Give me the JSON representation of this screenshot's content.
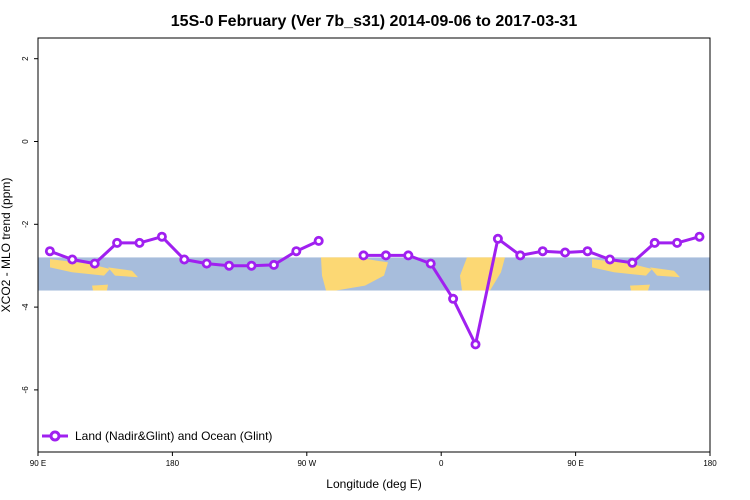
{
  "chart_data": {
    "type": "line",
    "title": "15S-0 February (Ver 7b_s31)   2014-09-06 to 2017-03-31",
    "xlabel": "Longitude (deg E)",
    "ylabel": "XCO2 - MLO trend (ppm)",
    "xlim": [
      90,
      540
    ],
    "ylim": [
      -7.5,
      2.5
    ],
    "x_ticks": [
      {
        "value": 90,
        "label": "90 E"
      },
      {
        "value": 180,
        "label": "180"
      },
      {
        "value": 270,
        "label": "90 W"
      },
      {
        "value": 360,
        "label": "0"
      },
      {
        "value": 450,
        "label": "90 E"
      },
      {
        "value": 540,
        "label": "180"
      }
    ],
    "y_ticks": [
      {
        "value": 2,
        "label": "2"
      },
      {
        "value": 0,
        "label": "0"
      },
      {
        "value": -2,
        "label": "-2"
      },
      {
        "value": -4,
        "label": "-4"
      },
      {
        "value": -6,
        "label": "-6"
      }
    ],
    "background_band": {
      "y_from": -3.6,
      "y_to": -2.8,
      "ocean_color": "#a7bddc",
      "land_color": "#fcd874"
    },
    "legend": {
      "placement": "bottom-left",
      "entries": [
        "Land (Nadir&Glint) and Ocean (Glint)"
      ]
    },
    "grid": false,
    "series": [
      {
        "name": "Land (Nadir&Glint) and Ocean (Glint)",
        "color": "#a020f0",
        "segments": [
          {
            "x": [
              98,
              113,
              128,
              143,
              158,
              173,
              188,
              203,
              218,
              233,
              248,
              263,
              278
            ],
            "y": [
              -2.65,
              -2.85,
              -2.95,
              -2.45,
              -2.45,
              -2.3,
              -2.85,
              -2.95,
              -3.0,
              -3.0,
              -2.98,
              -2.65,
              -2.4
            ]
          },
          {
            "x": [
              308,
              323,
              338,
              353,
              368,
              383,
              398,
              413,
              428,
              443,
              458,
              473,
              488,
              503,
              518,
              533
            ],
            "y": [
              -2.75,
              -2.75,
              -2.75,
              -2.95,
              -3.8,
              -4.9,
              -2.35,
              -2.75,
              -2.65,
              -2.68,
              -2.65,
              -2.85,
              -2.93,
              -2.45,
              -2.45,
              -2.3
            ]
          }
        ]
      }
    ]
  }
}
